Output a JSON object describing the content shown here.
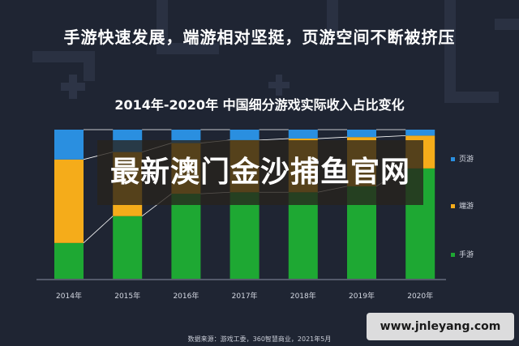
{
  "headline": "手游快速发展，端游相对坚挺，页游空间不断被挤压",
  "overlay_text": "最新澳门金沙捕鱼官网",
  "source_text": "数据来源：游戏工委，360智慧商业，2021年5月",
  "watermark_text": "www.jnleyang.com",
  "colors": {
    "background": "#1f2533",
    "mobile": "#1ea833",
    "client": "#f5ac1a",
    "web": "#2a8fe0",
    "connector": "#ffffff"
  },
  "chart_data": {
    "type": "bar",
    "stacked": true,
    "normalized": true,
    "title": "2014年-2020年 中国细分游戏实际收入占比变化",
    "categories": [
      "2014年",
      "2015年",
      "2016年",
      "2017年",
      "2018年",
      "2019年",
      "2020年"
    ],
    "series": [
      {
        "name": "手游",
        "color": "#1ea833",
        "values": [
          24,
          42,
          57,
          58,
          58,
          62,
          74
        ]
      },
      {
        "name": "端游",
        "color": "#f5ac1a",
        "values": [
          56,
          43,
          34,
          35,
          36,
          33,
          22
        ]
      },
      {
        "name": "页游",
        "color": "#2a8fe0",
        "values": [
          20,
          15,
          9,
          7,
          6,
          5,
          4
        ]
      }
    ],
    "ylim": [
      0,
      100
    ],
    "legend_position": "right",
    "grid": false
  }
}
